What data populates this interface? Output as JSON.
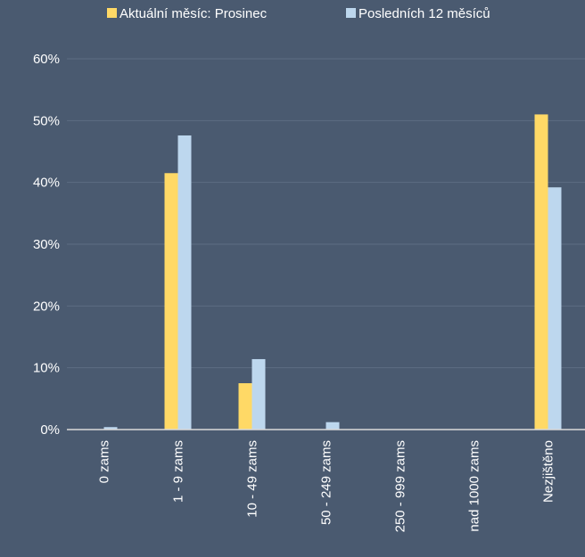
{
  "chart_data": {
    "type": "bar",
    "categories": [
      "0 zams",
      "1 - 9 zams",
      "10 - 49 zams",
      "50 - 249 zams",
      "250 - 999 zams",
      "nad 1000 zams",
      "Nezjištěno"
    ],
    "series": [
      {
        "name": "Aktuální měsíc: Prosinec",
        "color": "#ffd966",
        "values": [
          0,
          41.5,
          7.5,
          0,
          0,
          0,
          51
        ]
      },
      {
        "name": "Posledních 12 měsíců",
        "color": "#bdd7ee",
        "values": [
          0.4,
          47.6,
          11.4,
          1.2,
          0,
          0,
          39.2
        ]
      }
    ],
    "yticks": [
      "0%",
      "10%",
      "20%",
      "30%",
      "40%",
      "50%",
      "60%"
    ],
    "ylim": [
      0,
      60
    ],
    "grid": true,
    "legend_position": "top",
    "colors": {
      "background": "#4a5a70",
      "grid": "#5d6d83",
      "axis": "#d9d9d9",
      "text": "#ffffff"
    }
  }
}
